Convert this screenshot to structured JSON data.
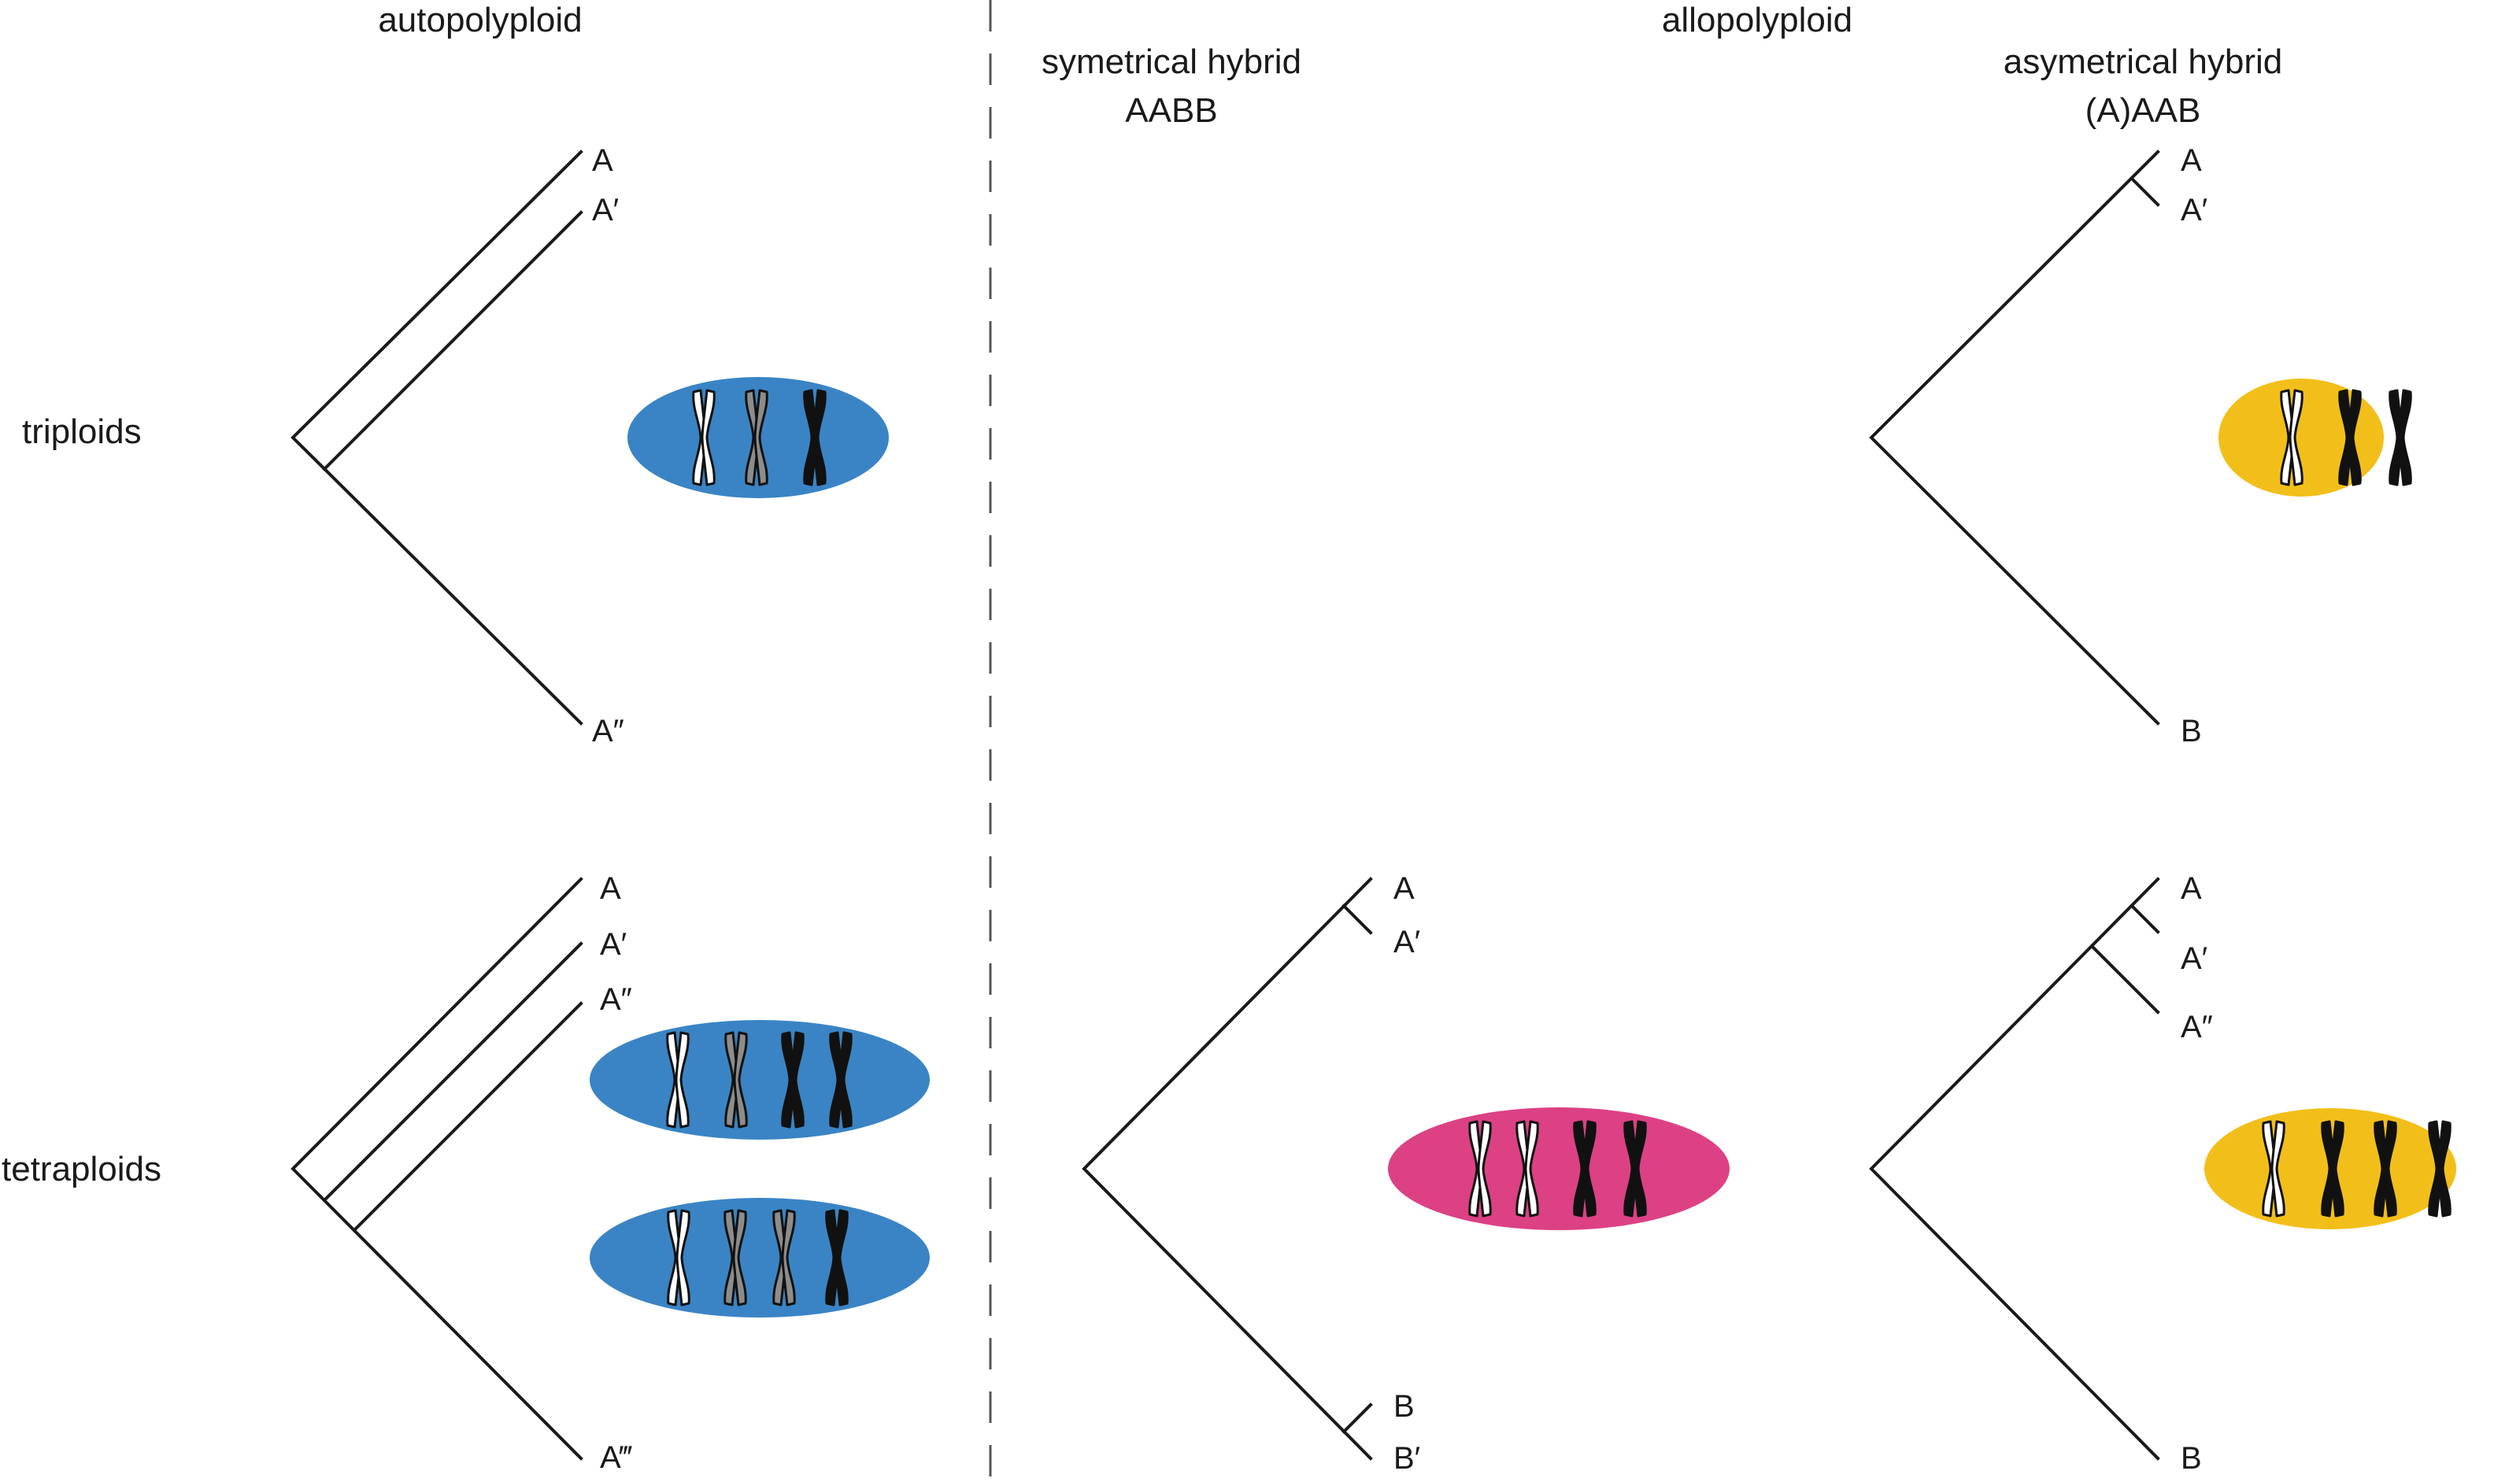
{
  "headers": {
    "autopolyploid": "autopolyploid",
    "allopolyploid": "allopolyploid",
    "symmetrical": "symetrical hybrid",
    "symmetrical_genome": "AABB",
    "asymmetrical": "asymetrical hybrid",
    "asymmetrical_genome": "(A)AAB"
  },
  "rows": {
    "triploids": "triploids",
    "tetraploids": "tetraploids"
  },
  "auto_tri": {
    "tips": [
      "A",
      "A′",
      "A″"
    ]
  },
  "auto_tetra": {
    "tips": [
      "A",
      "A′",
      "A″",
      "A‴"
    ]
  },
  "sym_tetra": {
    "tips": [
      "A",
      "A′",
      "B",
      "B′"
    ]
  },
  "asym_tri": {
    "tips": [
      "A",
      "A′",
      "B"
    ]
  },
  "asym_tetra": {
    "tips": [
      "A",
      "A′",
      "A″",
      "B"
    ]
  },
  "colors": {
    "blue": "#3a84c5",
    "magenta": "#dc4184",
    "yellow": "#f2bf1a",
    "chrom_white": "#ffffff",
    "chrom_grey": "#8c8c8c",
    "chrom_black": "#111111"
  },
  "cells": {
    "auto_tri": [
      "white",
      "grey",
      "black"
    ],
    "auto_tetra_1": [
      "white",
      "grey",
      "black",
      "black"
    ],
    "auto_tetra_2": [
      "white",
      "grey",
      "grey",
      "black"
    ],
    "sym_tetra": [
      "white",
      "white",
      "black",
      "black"
    ],
    "asym_tri": [
      "white",
      "black",
      "black"
    ],
    "asym_tetra": [
      "white",
      "black",
      "black",
      "black"
    ]
  }
}
